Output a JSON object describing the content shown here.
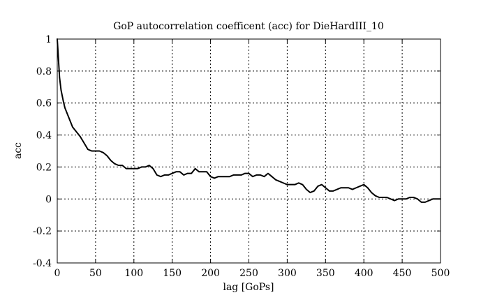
{
  "chart_data": {
    "type": "line",
    "title": "GoP autocorrelation coefficent (acc) for DieHardIII_10",
    "xlabel": "lag [GoPs]",
    "ylabel": "acc",
    "xlim": [
      0,
      500
    ],
    "ylim": [
      -0.4,
      1
    ],
    "grid": true,
    "xticks": [
      {
        "value": 0,
        "label": "0"
      },
      {
        "value": 50,
        "label": "50"
      },
      {
        "value": 100,
        "label": "100"
      },
      {
        "value": 150,
        "label": "150"
      },
      {
        "value": 200,
        "label": "200"
      },
      {
        "value": 250,
        "label": "250"
      },
      {
        "value": 300,
        "label": "300"
      },
      {
        "value": 350,
        "label": "350"
      },
      {
        "value": 400,
        "label": "400"
      },
      {
        "value": 450,
        "label": "450"
      },
      {
        "value": 500,
        "label": "500"
      }
    ],
    "yticks": [
      {
        "value": -0.4,
        "label": "-0.4"
      },
      {
        "value": -0.2,
        "label": "-0.2"
      },
      {
        "value": 0,
        "label": "0"
      },
      {
        "value": 0.2,
        "label": "0.2"
      },
      {
        "value": 0.4,
        "label": "0.4"
      },
      {
        "value": 0.6,
        "label": "0.6"
      },
      {
        "value": 0.8,
        "label": "0.8"
      },
      {
        "value": 1,
        "label": "1"
      }
    ],
    "series": [
      {
        "color": "#000000",
        "x": [
          0,
          1,
          2,
          3,
          5,
          8,
          10,
          15,
          20,
          25,
          30,
          35,
          40,
          45,
          50,
          55,
          60,
          65,
          70,
          75,
          80,
          85,
          90,
          95,
          100,
          105,
          110,
          115,
          120,
          125,
          130,
          135,
          140,
          145,
          150,
          155,
          160,
          165,
          170,
          175,
          180,
          185,
          190,
          195,
          200,
          205,
          210,
          215,
          220,
          225,
          230,
          235,
          240,
          245,
          250,
          255,
          260,
          265,
          270,
          275,
          280,
          285,
          290,
          295,
          300,
          305,
          310,
          315,
          320,
          325,
          330,
          335,
          340,
          345,
          350,
          355,
          360,
          365,
          370,
          375,
          380,
          385,
          390,
          395,
          400,
          405,
          410,
          415,
          420,
          425,
          430,
          435,
          440,
          445,
          450,
          455,
          460,
          465,
          470,
          475,
          480,
          485,
          490,
          495,
          500
        ],
        "y": [
          1.0,
          0.92,
          0.84,
          0.76,
          0.68,
          0.61,
          0.57,
          0.51,
          0.45,
          0.42,
          0.39,
          0.35,
          0.31,
          0.3,
          0.3,
          0.3,
          0.29,
          0.27,
          0.24,
          0.22,
          0.21,
          0.21,
          0.19,
          0.19,
          0.19,
          0.19,
          0.2,
          0.2,
          0.21,
          0.19,
          0.15,
          0.14,
          0.15,
          0.15,
          0.16,
          0.17,
          0.17,
          0.15,
          0.16,
          0.16,
          0.19,
          0.17,
          0.17,
          0.17,
          0.14,
          0.13,
          0.14,
          0.14,
          0.14,
          0.14,
          0.15,
          0.15,
          0.15,
          0.16,
          0.16,
          0.14,
          0.15,
          0.15,
          0.14,
          0.16,
          0.14,
          0.12,
          0.11,
          0.1,
          0.09,
          0.09,
          0.09,
          0.1,
          0.09,
          0.06,
          0.04,
          0.05,
          0.08,
          0.09,
          0.07,
          0.05,
          0.05,
          0.06,
          0.07,
          0.07,
          0.07,
          0.06,
          0.07,
          0.08,
          0.09,
          0.07,
          0.04,
          0.02,
          0.01,
          0.01,
          0.01,
          0.0,
          -0.01,
          0.0,
          0.0,
          0.0,
          0.01,
          0.01,
          0.0,
          -0.02,
          -0.02,
          -0.01,
          0.0,
          0.0,
          0.0
        ]
      }
    ]
  }
}
